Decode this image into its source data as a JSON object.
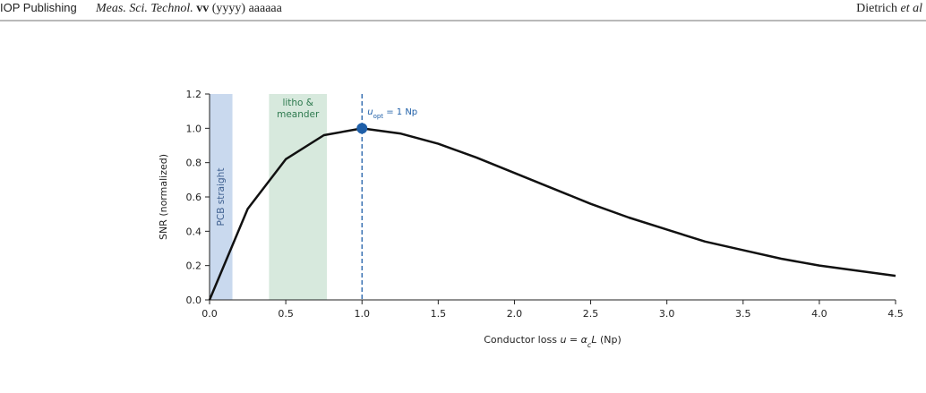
{
  "header": {
    "publisher": "IOP Publishing",
    "journal": "Meas. Sci. Technol.",
    "volume": "vv",
    "rest": "(yyyy) aaaaaa",
    "authors": "Dietrich",
    "etal": "et al"
  },
  "chart_data": {
    "type": "line",
    "x": [
      0,
      0.25,
      0.5,
      0.75,
      1.0,
      1.25,
      1.5,
      1.75,
      2.0,
      2.25,
      2.5,
      2.75,
      3.0,
      3.25,
      3.5,
      3.75,
      4.0,
      4.25,
      4.5
    ],
    "series": [
      {
        "color": "#111111",
        "values": [
          0,
          0.53,
          0.82,
          0.96,
          1.0,
          0.97,
          0.91,
          0.83,
          0.74,
          0.65,
          0.56,
          0.48,
          0.41,
          0.34,
          0.29,
          0.24,
          0.2,
          0.17,
          0.14
        ]
      }
    ],
    "xlim": [
      0,
      4.5
    ],
    "xticks": [
      {
        "value": 0,
        "label": "0.0"
      },
      0.5,
      {
        "value": 1,
        "label": "1.0"
      },
      1.5,
      {
        "value": 2,
        "label": "2.0"
      },
      2.5,
      {
        "value": 3,
        "label": "3.0"
      },
      3.5,
      {
        "value": 4,
        "label": "4.0"
      },
      4.5
    ],
    "ylim": [
      0,
      1.2
    ],
    "yticks": [
      {
        "value": 0,
        "label": "0.0"
      },
      0.2,
      0.4,
      0.6,
      0.8,
      {
        "value": 1,
        "label": "1.0"
      },
      1.2
    ],
    "ylabel": "SNR (normalized)",
    "xlabel": [
      "Conductor loss ",
      "u",
      " = ",
      "α",
      "c",
      "L",
      " (Np)"
    ],
    "bands": [
      {
        "label": [
          "PCB straight"
        ],
        "xlim": [
          0,
          0.15
        ],
        "color": "#c9d9ee",
        "text_color": "#3d5f8f"
      },
      {
        "label": [
          "litho &",
          "meander"
        ],
        "xlim": [
          0.39,
          0.77
        ],
        "color": "#d7e9dd",
        "text_color": "#2e7a4f"
      }
    ],
    "optimum": {
      "x": 1.0,
      "y": 1.0,
      "color": "#1f5fa8",
      "label": [
        "u",
        "opt",
        " = 1 Np"
      ]
    }
  }
}
